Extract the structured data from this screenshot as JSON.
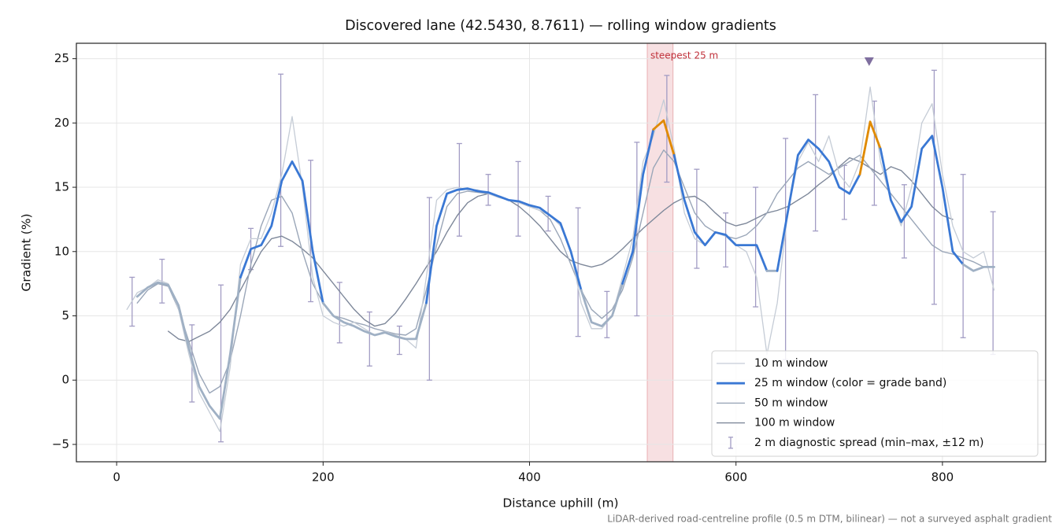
{
  "chart_data": {
    "type": "line",
    "title": "Discovered lane (42.5430, 8.7611) — rolling window gradients",
    "x_label": "Distance uphill (m)",
    "y_label": "Gradient (%)",
    "footnote": "LiDAR-derived road-centreline profile (0.5 m DTM, bilinear) — not a surveyed asphalt gradient",
    "xlim": [
      -39,
      900
    ],
    "ylim": [
      -6.35,
      26.2
    ],
    "xticks": [
      0,
      200,
      400,
      600,
      800
    ],
    "yticks": [
      {
        "value": -5,
        "label": "−5"
      },
      0,
      5,
      10,
      15,
      20,
      25
    ],
    "grid": true,
    "legend_position": "lower right",
    "x": [
      0,
      10,
      20,
      30,
      40,
      50,
      60,
      70,
      80,
      90,
      100,
      110,
      120,
      130,
      140,
      150,
      160,
      170,
      180,
      190,
      200,
      210,
      220,
      230,
      240,
      250,
      260,
      270,
      280,
      290,
      300,
      310,
      320,
      330,
      340,
      350,
      360,
      370,
      380,
      390,
      400,
      410,
      420,
      430,
      440,
      450,
      460,
      470,
      480,
      490,
      500,
      510,
      520,
      530,
      540,
      550,
      560,
      570,
      580,
      590,
      600,
      610,
      620,
      630,
      640,
      650,
      660,
      670,
      680,
      690,
      700,
      710,
      720,
      730,
      740,
      750,
      760,
      770,
      780,
      790,
      800,
      810,
      820,
      830,
      840,
      850,
      860
    ],
    "series": [
      {
        "name": "10 m window",
        "color": "#c5ccd6",
        "width": 1.3,
        "values": [
          null,
          5.5,
          6.8,
          7.2,
          7.8,
          7.5,
          5.5,
          2,
          -1,
          -2.5,
          -4,
          1,
          9,
          11,
          11,
          13,
          16,
          20.5,
          15,
          8,
          5,
          4.5,
          4.2,
          4.5,
          4,
          3.5,
          3.8,
          3.5,
          3.2,
          2.5,
          8,
          14,
          14.8,
          15,
          14.8,
          14.8,
          14.5,
          14.2,
          14,
          13.8,
          13.5,
          13.2,
          12.8,
          12,
          10,
          6,
          4,
          4,
          5,
          8,
          11,
          17,
          19,
          21.8,
          18,
          13,
          11,
          10.5,
          11.5,
          11.2,
          10.5,
          10,
          8,
          2,
          6,
          13,
          17,
          18.5,
          17,
          19,
          16,
          15,
          17,
          22.8,
          17,
          14,
          12,
          15,
          20,
          21.5,
          16,
          12,
          10,
          9.5,
          10,
          7,
          null
        ]
      },
      {
        "name": "25 m window (color = grade band)",
        "color": "#3a78d4",
        "width": 2.8,
        "grade_bands": [
          {
            "below": 10,
            "color": "#9fb0c4"
          },
          {
            "below": 20,
            "color": "#3a78d4"
          },
          {
            "color": "#e08a00"
          }
        ],
        "values": [
          null,
          null,
          6.5,
          7.2,
          7.6,
          7.4,
          5.8,
          2.5,
          -0.5,
          -2,
          -3,
          2,
          8,
          10.2,
          10.5,
          12,
          15.5,
          17,
          15.5,
          10,
          6,
          5,
          4.5,
          4.2,
          3.8,
          3.5,
          3.7,
          3.4,
          3.2,
          3.2,
          6,
          12,
          14.5,
          14.8,
          14.9,
          14.7,
          14.6,
          14.3,
          14,
          13.9,
          13.6,
          13.4,
          12.8,
          12.2,
          10,
          7,
          4.5,
          4.2,
          5,
          7.5,
          10,
          16,
          19.5,
          20.2,
          17.5,
          14,
          11.5,
          10.5,
          11.5,
          11.3,
          10.5,
          10.5,
          10.5,
          8.5,
          8.5,
          13,
          17.5,
          18.7,
          18,
          17,
          15,
          14.5,
          16,
          20.1,
          18,
          14,
          12.3,
          13.5,
          18,
          19,
          15,
          10,
          9,
          8.5,
          8.8,
          8.8,
          null
        ]
      },
      {
        "name": "50 m window",
        "color": "#9aa6b8",
        "width": 1.4,
        "values": [
          null,
          null,
          6,
          7,
          7.5,
          7.3,
          5.5,
          3,
          0.5,
          -1,
          -0.5,
          1.5,
          5,
          9,
          12,
          14,
          14.3,
          13,
          10,
          7.5,
          6,
          5,
          4.8,
          4.5,
          4.3,
          4,
          3.8,
          3.6,
          3.5,
          4,
          7,
          10.5,
          13.5,
          14.5,
          14.7,
          14.6,
          14.5,
          14.3,
          14,
          13.8,
          13.5,
          13.2,
          12.5,
          11,
          9,
          7,
          5.5,
          4.8,
          5.5,
          7,
          9.5,
          13,
          16.5,
          17.9,
          17,
          15,
          13,
          12,
          11.5,
          11.2,
          11,
          11.3,
          12,
          13,
          14.5,
          15.5,
          16.5,
          17,
          16.5,
          16,
          16.5,
          17,
          17.5,
          16.5,
          15.5,
          14.5,
          13.5,
          12.5,
          11.5,
          10.5,
          10,
          9.8,
          9.5,
          9.2,
          8.8,
          null,
          null
        ]
      },
      {
        "name": "100 m window",
        "color": "#7e889a",
        "width": 1.4,
        "values": [
          null,
          null,
          null,
          null,
          null,
          3.8,
          3.2,
          3,
          3.4,
          3.8,
          4.5,
          5.5,
          7,
          8.5,
          10,
          11,
          11.2,
          10.8,
          10.2,
          9.5,
          8.5,
          7.5,
          6.5,
          5.5,
          4.7,
          4.2,
          4.4,
          5.2,
          6.3,
          7.5,
          8.8,
          10,
          11.5,
          12.8,
          13.8,
          14.3,
          14.5,
          14.3,
          14,
          13.5,
          12.8,
          12,
          11,
          10,
          9.3,
          9,
          8.8,
          9,
          9.5,
          10.2,
          11,
          11.8,
          12.5,
          13.2,
          13.8,
          14.2,
          14.3,
          13.8,
          13,
          12.3,
          12,
          12.2,
          12.6,
          13,
          13.2,
          13.5,
          14,
          14.5,
          15.2,
          15.8,
          16.6,
          17.3,
          17,
          16.5,
          16,
          16.6,
          16.3,
          15.5,
          14.5,
          13.5,
          12.8,
          12.5,
          null,
          null,
          null,
          null,
          null
        ]
      }
    ],
    "error_bars": {
      "name": "2 m diagnostic spread (min–max, ±12 m)",
      "color": "#a29cc4",
      "x": [
        15,
        44,
        73,
        101,
        130,
        159,
        188,
        216,
        245,
        274,
        303,
        332,
        360,
        389,
        418,
        447,
        475,
        504,
        533,
        562,
        590,
        619,
        648,
        677,
        705,
        734,
        763,
        792,
        820,
        849
      ],
      "low": [
        4.2,
        6,
        -1.7,
        -4.8,
        8.6,
        10.4,
        6.1,
        2.9,
        1.1,
        2,
        0,
        11.2,
        13.6,
        11.2,
        11.6,
        3.4,
        3.3,
        5,
        15.4,
        8.7,
        8.8,
        5.7,
        1.6,
        11.6,
        12.5,
        13.6,
        9.5,
        5.9,
        3.3,
        2
      ],
      "high": [
        8,
        9.4,
        4.3,
        7.4,
        11.8,
        23.8,
        17.1,
        7.6,
        5.3,
        4.2,
        14.2,
        18.4,
        16,
        17,
        14.3,
        13.4,
        6.9,
        18.5,
        23.7,
        16.4,
        13,
        15,
        18.8,
        22.2,
        16.7,
        21.7,
        15.2,
        24.1,
        16,
        13.1
      ]
    },
    "highlight": {
      "label": "steepest 25 m",
      "span": [
        514,
        539
      ],
      "color": "#d9727a"
    },
    "peak_marker": {
      "x": 729,
      "y": 24.8,
      "color": "#7f6f9f"
    }
  }
}
